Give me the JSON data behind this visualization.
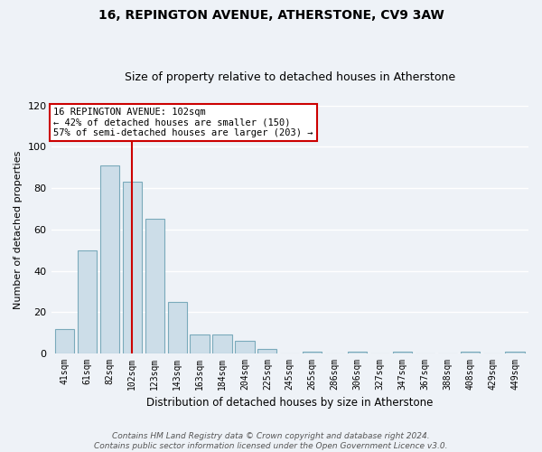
{
  "title": "16, REPINGTON AVENUE, ATHERSTONE, CV9 3AW",
  "subtitle": "Size of property relative to detached houses in Atherstone",
  "xlabel": "Distribution of detached houses by size in Atherstone",
  "ylabel": "Number of detached properties",
  "bin_labels": [
    "41sqm",
    "61sqm",
    "82sqm",
    "102sqm",
    "123sqm",
    "143sqm",
    "163sqm",
    "184sqm",
    "204sqm",
    "225sqm",
    "245sqm",
    "265sqm",
    "286sqm",
    "306sqm",
    "327sqm",
    "347sqm",
    "367sqm",
    "388sqm",
    "408sqm",
    "429sqm",
    "449sqm"
  ],
  "bar_heights": [
    12,
    50,
    91,
    83,
    65,
    25,
    9,
    9,
    6,
    2,
    0,
    1,
    0,
    1,
    0,
    1,
    0,
    0,
    1,
    0,
    1
  ],
  "bar_color": "#ccdde8",
  "bar_edge_color": "#7aaabb",
  "highlight_x_label": "102sqm",
  "highlight_line_color": "#cc0000",
  "annotation_text": "16 REPINGTON AVENUE: 102sqm\n← 42% of detached houses are smaller (150)\n57% of semi-detached houses are larger (203) →",
  "annotation_box_color": "#ffffff",
  "annotation_box_edge_color": "#cc0000",
  "ylim": [
    0,
    120
  ],
  "yticks": [
    0,
    20,
    40,
    60,
    80,
    100,
    120
  ],
  "footer_text": "Contains HM Land Registry data © Crown copyright and database right 2024.\nContains public sector information licensed under the Open Government Licence v3.0.",
  "background_color": "#eef2f7",
  "grid_color": "#ffffff",
  "title_fontsize": 10,
  "subtitle_fontsize": 9,
  "annotation_fontsize": 7.5,
  "footer_fontsize": 6.5
}
